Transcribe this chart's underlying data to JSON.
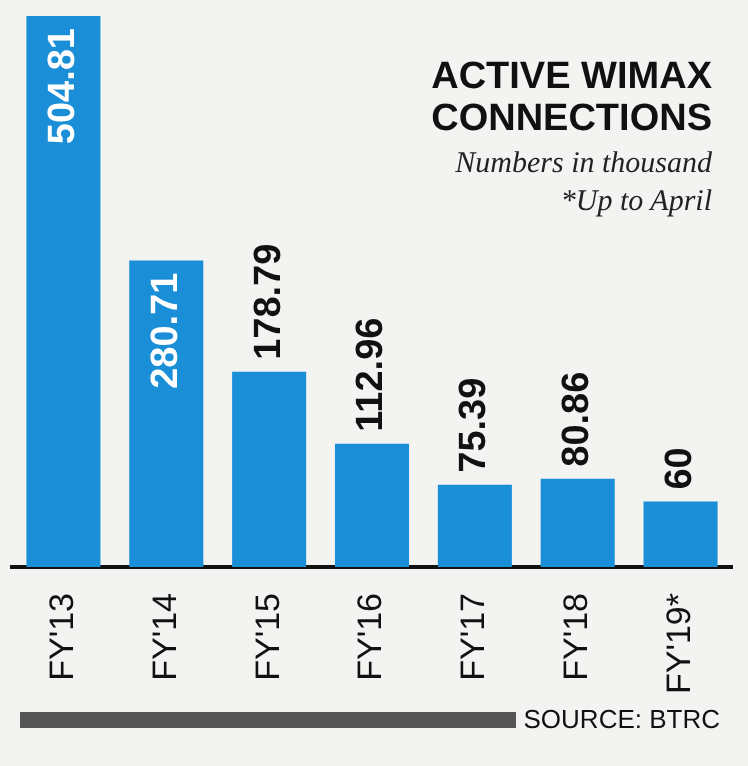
{
  "chart_data": {
    "type": "bar",
    "title": "ACTIVE WIMAX CONNECTIONS",
    "subtitle": "Numbers in thousand",
    "annotations": [
      "*Up to April",
      "SOURCE: BTRC"
    ],
    "categories": [
      "FY'13",
      "FY'14",
      "FY'15",
      "FY'16",
      "FY'17",
      "FY'18",
      "FY'19*"
    ],
    "values": [
      504.81,
      280.71,
      178.79,
      112.96,
      75.39,
      80.86,
      60
    ],
    "color": "#1a8fd8",
    "tick_labels": "x",
    "data_labels": true,
    "grid": false,
    "legend": false
  }
}
